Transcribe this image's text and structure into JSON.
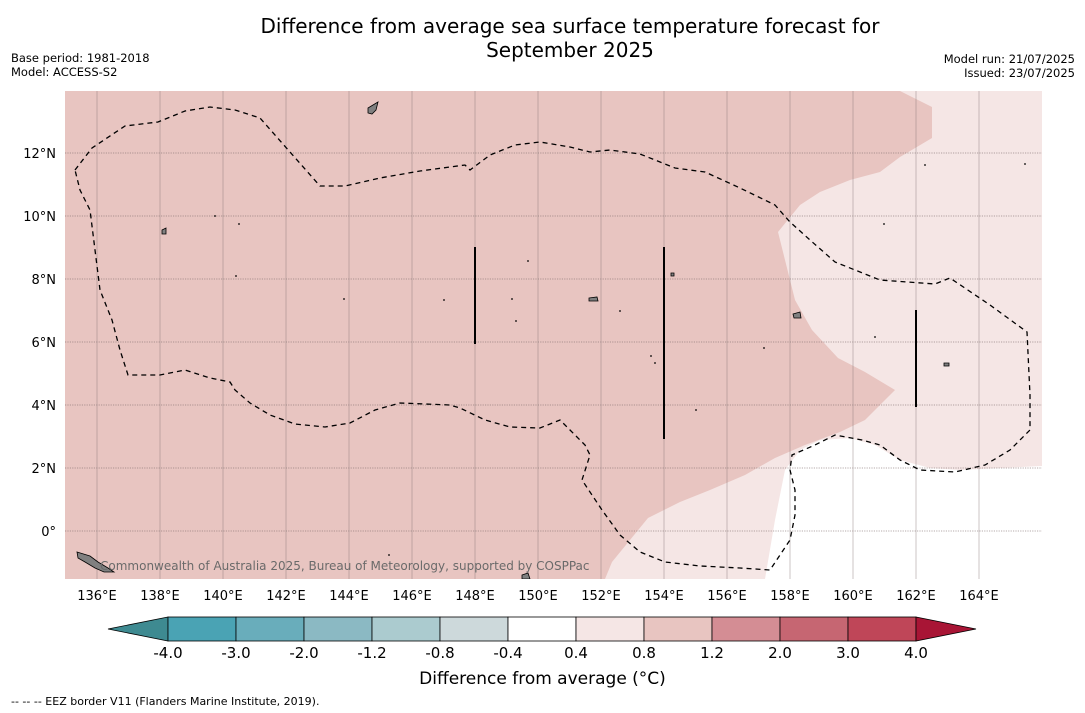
{
  "title_line1": "Difference from average sea surface temperature forecast for",
  "title_line2": "September 2025",
  "base_period": "Base period: 1981-2018",
  "model": "Model: ACCESS-S2",
  "model_run": "Model run: 21/07/2025",
  "issued": "Issued: 23/07/2025",
  "lat_labels": [
    "12°N",
    "10°N",
    "8°N",
    "6°N",
    "4°N",
    "2°N",
    "0°"
  ],
  "lon_labels": [
    "136°E",
    "138°E",
    "140°E",
    "142°E",
    "144°E",
    "146°E",
    "148°E",
    "150°E",
    "152°E",
    "154°E",
    "156°E",
    "158°E",
    "160°E",
    "162°E",
    "164°E"
  ],
  "copyright": "Commonwealth of Australia 2025, Bureau of Meteorology, supported by COSPPac",
  "colorbar": {
    "ticks": [
      "-4.0",
      "-3.0",
      "-2.0",
      "-1.2",
      "-0.8",
      "-0.4",
      "0.4",
      "0.8",
      "1.2",
      "2.0",
      "3.0",
      "4.0"
    ],
    "colors": [
      "#3e8a91",
      "#4aa3b4",
      "#69adbb",
      "#8bb9c3",
      "#abcbcf",
      "#cdd9db",
      "#ffffff",
      "#f5e6e5",
      "#e8c5c1",
      "#d48d94",
      "#c66672",
      "#bf4658",
      "#a81535"
    ],
    "label": "Difference from average (°C)"
  },
  "footnote": "--  --  -- EEZ border V11 (Flanders Marine Institute, 2019).",
  "colors": {
    "warm_shade": "#e8c5c1",
    "light_shade": "#f5e6e5",
    "no_change": "#ffffff"
  }
}
